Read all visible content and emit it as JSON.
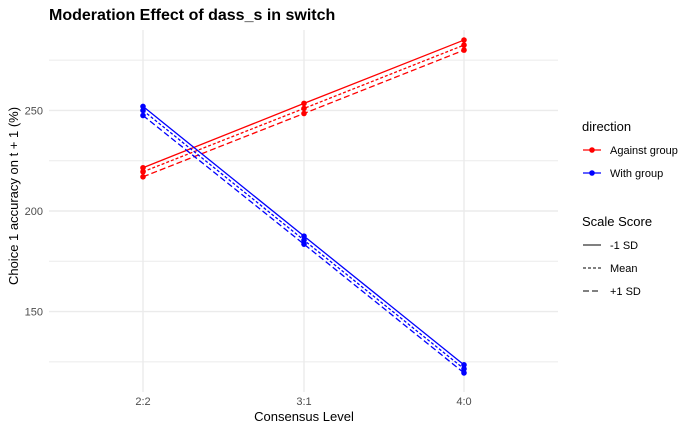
{
  "chart_data": {
    "type": "line",
    "title": "Moderation Effect of dass_s in switch",
    "xlabel": "Consensus Level",
    "ylabel": "Choice 1 accuracy on t + 1 (%)",
    "categories": [
      "2:2",
      "3:1",
      "4:0"
    ],
    "ylim": [
      110,
      290
    ],
    "yticks": [
      150,
      200,
      250
    ],
    "grid": true,
    "legend_position": "right",
    "colors": {
      "Against group": "#ff0000",
      "With group": "#0000ff"
    },
    "legends": [
      {
        "title": "direction",
        "entries": [
          {
            "label": "Against group",
            "color": "#ff0000"
          },
          {
            "label": "With group",
            "color": "#0000ff"
          }
        ]
      },
      {
        "title": "Scale Score",
        "entries": [
          {
            "label": "-1 SD",
            "dash": "solid"
          },
          {
            "label": "Mean",
            "dash": "dotted"
          },
          {
            "label": "+1 SD",
            "dash": "dashed"
          }
        ]
      }
    ],
    "series": [
      {
        "direction": "Against group",
        "scale": "-1 SD",
        "dash": "solid",
        "values": [
          221.5,
          253.5,
          285.0
        ]
      },
      {
        "direction": "Against group",
        "scale": "Mean",
        "dash": "dotted",
        "values": [
          219.5,
          251.0,
          282.5
        ]
      },
      {
        "direction": "Against group",
        "scale": "+1 SD",
        "dash": "dashed",
        "values": [
          217.0,
          248.5,
          280.0
        ]
      },
      {
        "direction": "With group",
        "scale": "-1 SD",
        "dash": "solid",
        "values": [
          252.0,
          187.5,
          123.5
        ]
      },
      {
        "direction": "With group",
        "scale": "Mean",
        "dash": "dotted",
        "values": [
          250.0,
          185.5,
          121.5
        ]
      },
      {
        "direction": "With group",
        "scale": "+1 SD",
        "dash": "dashed",
        "values": [
          247.5,
          183.5,
          119.5
        ]
      }
    ]
  }
}
